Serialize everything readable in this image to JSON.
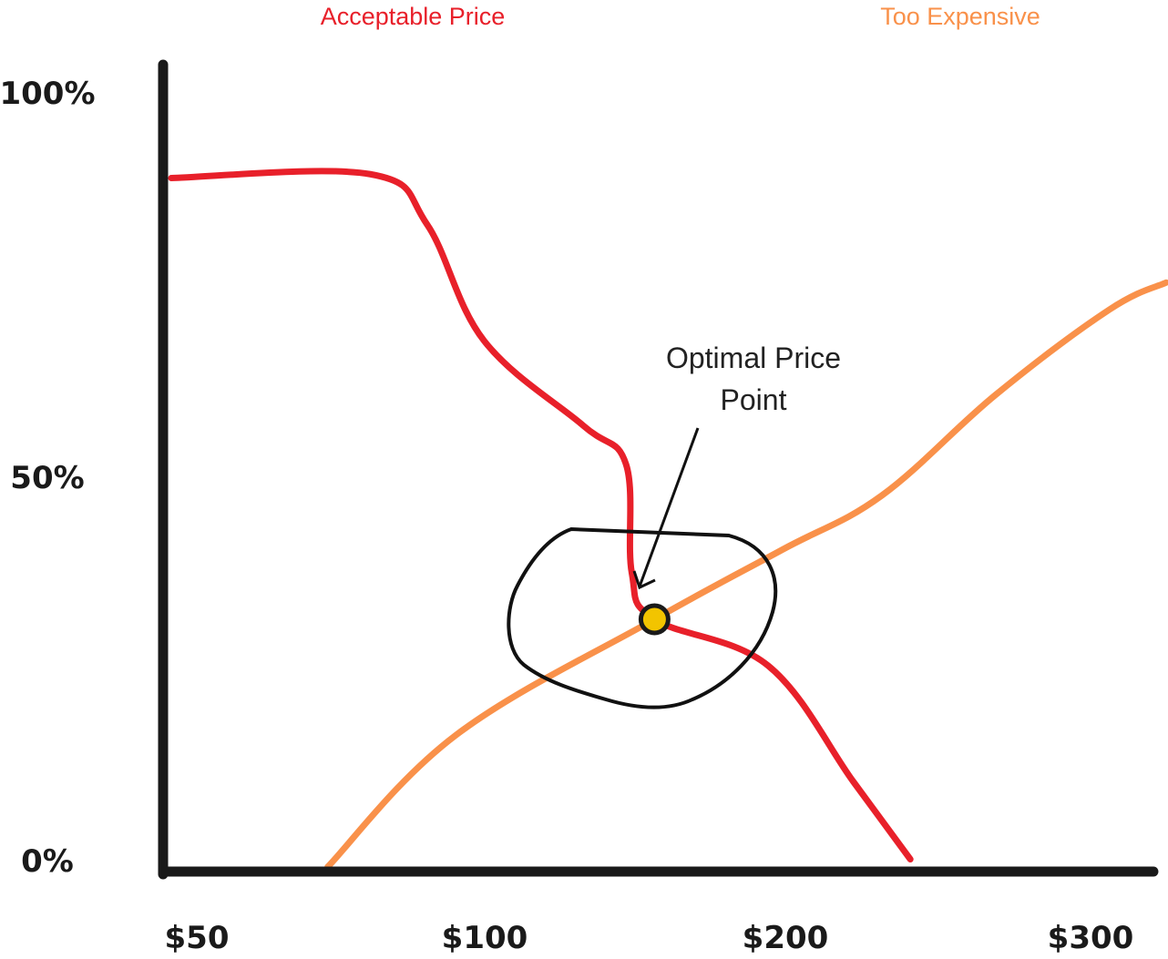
{
  "chart_data": {
    "type": "line",
    "title": "",
    "xlabel": "",
    "ylabel": "",
    "ylim": [
      0,
      100
    ],
    "x_tick_labels": [
      "$50",
      "$100",
      "$200",
      "$300"
    ],
    "y_tick_labels": [
      "100%",
      "50%",
      "0%"
    ],
    "series": [
      {
        "name": "Acceptable Price",
        "color": "#e8202a",
        "points": [
          [
            0,
            89
          ],
          [
            0.7,
            89.5
          ],
          [
            0.9,
            83
          ],
          [
            1.1,
            68
          ],
          [
            1.45,
            57
          ],
          [
            1.6,
            52
          ],
          [
            1.62,
            38
          ],
          [
            1.7,
            32
          ],
          [
            2.1,
            26
          ],
          [
            2.4,
            11
          ],
          [
            2.6,
            1
          ]
        ]
      },
      {
        "name": "Too Expensive",
        "color": "#f9914a",
        "points": [
          [
            0.55,
            0
          ],
          [
            1.0,
            17
          ],
          [
            1.7,
            32
          ],
          [
            2.15,
            41
          ],
          [
            2.5,
            48
          ],
          [
            2.9,
            61
          ],
          [
            3.3,
            72
          ],
          [
            3.5,
            75.5
          ]
        ]
      }
    ],
    "annotations": [
      {
        "text_line1": "Optimal Price",
        "text_line2": "Point",
        "x": 1.7,
        "y": 32
      }
    ],
    "marker": {
      "x": 1.7,
      "y": 32,
      "color": "#f2c400"
    }
  }
}
